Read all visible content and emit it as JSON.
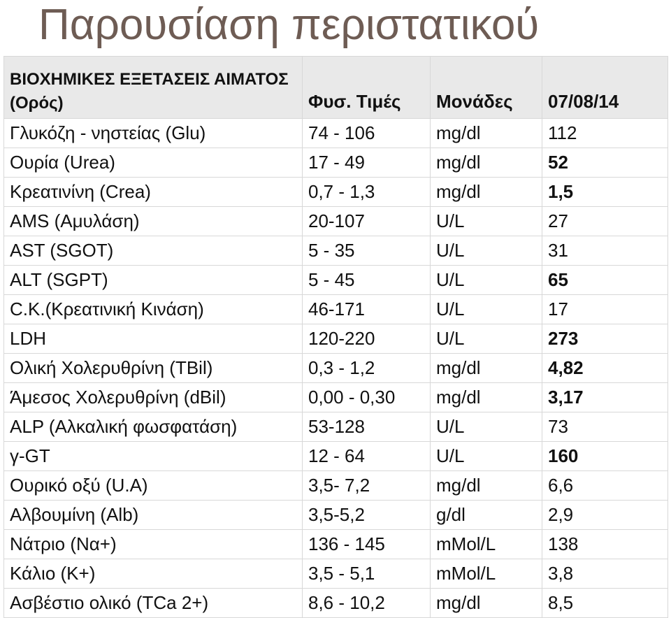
{
  "header": {
    "title": "Παρουσίαση περιστατικού"
  },
  "table": {
    "columns": [
      "ΒΙΟΧΗΜΙΚΕΣ ΕΞΕΤΑΣΕΙΣ ΑΙΜΑΤΟΣ (Ορός)",
      "Φυσ. Τιμές",
      "Μονάδες",
      "07/08/14"
    ],
    "rows": [
      {
        "name": "Γλυκόζη - νηστείας (Glu)",
        "range": "74 - 106",
        "unit": "mg/dl",
        "value": "112",
        "bold": false
      },
      {
        "name": "Ουρία (Urea)",
        "range": "17 - 49",
        "unit": "mg/dl",
        "value": "52",
        "bold": true
      },
      {
        "name": "Κρεατινίνη (Crea)",
        "range": "0,7 - 1,3",
        "unit": "mg/dl",
        "value": "1,5",
        "bold": true
      },
      {
        "name": "AMS (Αμυλάση)",
        "range": "20-107",
        "unit": "U/L",
        "value": "27",
        "bold": false
      },
      {
        "name": "AST (SGOT)",
        "range": "5 - 35",
        "unit": "U/L",
        "value": "31",
        "bold": false
      },
      {
        "name": "ALT (SGPT)",
        "range": "5 - 45",
        "unit": "U/L",
        "value": "65",
        "bold": true
      },
      {
        "name": "C.K.(Κρεατινική Κινάση)",
        "range": "46-171",
        "unit": "U/L",
        "value": "17",
        "bold": false
      },
      {
        "name": "LDH",
        "range": "120-220",
        "unit": "U/L",
        "value": "273",
        "bold": true
      },
      {
        "name": "Ολική Χολερυθρίνη (TBil)",
        "range": "0,3 - 1,2",
        "unit": "mg/dl",
        "value": "4,82",
        "bold": true
      },
      {
        "name": "Άμεσος Χολερυθρίνη (dBil)",
        "range": "0,00 - 0,30",
        "unit": "mg/dl",
        "value": "3,17",
        "bold": true
      },
      {
        "name": "ALP (Αλκαλική φωσφατάση)",
        "range": "53-128",
        "unit": "U/L",
        "value": "73",
        "bold": false
      },
      {
        "name": "γ-GT",
        "range": "12 - 64",
        "unit": "U/L",
        "value": "160",
        "bold": true
      },
      {
        "name": "Ουρικό οξύ (U.A)",
        "range": "3,5- 7,2",
        "unit": "mg/dl",
        "value": "6,6",
        "bold": false
      },
      {
        "name": "Αλβουμίνη (Alb)",
        "range": "3,5-5,2",
        "unit": "g/dl",
        "value": "2,9",
        "bold": false
      },
      {
        "name": "Νάτριο  (Να+)",
        "range": "136 - 145",
        "unit": "mMol/L",
        "value": "138",
        "bold": false
      },
      {
        "name": "Κάλιο (K+)",
        "range": "3,5 - 5,1",
        "unit": "mMol/L",
        "value": "3,8",
        "bold": false
      },
      {
        "name": "Ασβέστιο ολικό (TCa 2+)",
        "range": "8,6 - 10,2",
        "unit": "mg/dl",
        "value": "8,5",
        "bold": false
      }
    ]
  }
}
